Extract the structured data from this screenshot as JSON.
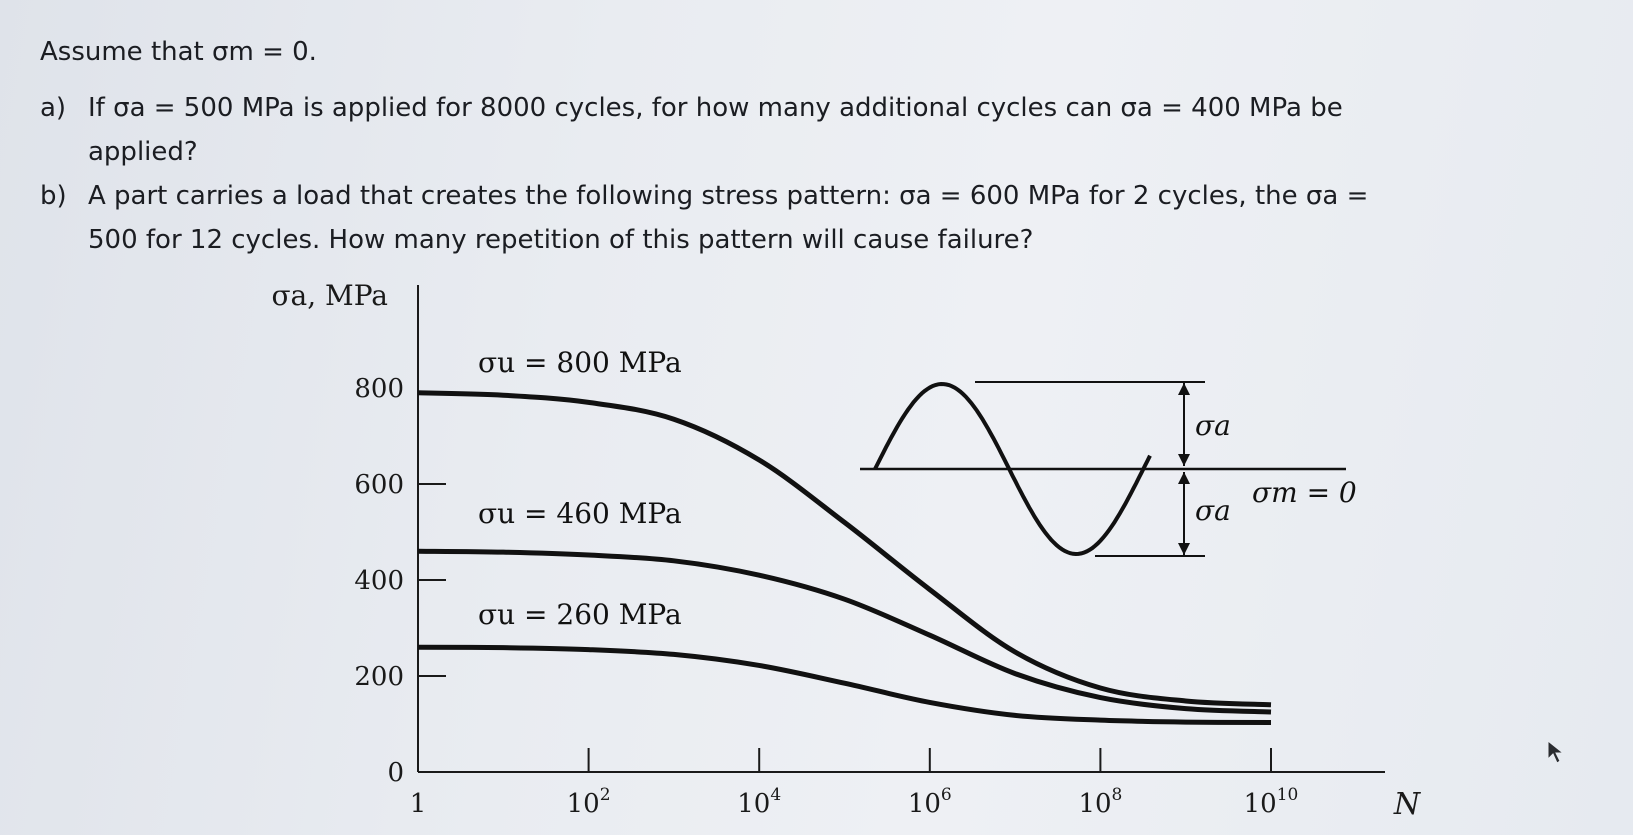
{
  "question": {
    "intro": "Assume that σm = 0.",
    "a_label": "a)",
    "a_line1": "If σa = 500 MPa is applied for 8000 cycles, for how many additional cycles can σa = 400 MPa be",
    "a_line2": "applied?",
    "b_label": "b)",
    "b_line1": "A part carries a load that creates the following stress pattern: σa = 600 MPa for 2 cycles, the σa =",
    "b_line2": "500 for 12 cycles. How many repetition of this pattern will cause failure?"
  },
  "chart_data": {
    "type": "line",
    "title": "",
    "ylabel": "σa, MPa",
    "xlabel": "N",
    "x_scale": "log",
    "ylim": [
      0,
      900
    ],
    "y_ticks": [
      0,
      200,
      400,
      600,
      800
    ],
    "y_tick_labels": [
      "0",
      "200",
      "400",
      "600",
      "800"
    ],
    "x_ticks": [
      1,
      100,
      10000,
      1000000,
      100000000,
      10000000000
    ],
    "x_tick_labels": [
      "1",
      "10^2",
      "10^4",
      "10^6",
      "10^8",
      "10^10"
    ],
    "series": [
      {
        "name": "σu = 800 MPa",
        "x": [
          1,
          10,
          100,
          1000,
          10000,
          100000,
          1000000,
          10000000,
          100000000,
          1000000000,
          10000000000
        ],
        "y": [
          790,
          785,
          770,
          735,
          650,
          520,
          380,
          250,
          175,
          148,
          140
        ]
      },
      {
        "name": "σu = 460 MPa",
        "x": [
          1,
          10,
          100,
          1000,
          10000,
          100000,
          1000000,
          10000000,
          100000000,
          1000000000,
          10000000000
        ],
        "y": [
          460,
          458,
          452,
          440,
          410,
          360,
          285,
          205,
          155,
          132,
          125
        ]
      },
      {
        "name": "σu = 260 MPa",
        "x": [
          1,
          10,
          100,
          1000,
          10000,
          100000,
          1000000,
          10000000,
          100000000,
          1000000000,
          10000000000
        ],
        "y": [
          260,
          259,
          255,
          245,
          222,
          185,
          145,
          118,
          108,
          104,
          103
        ]
      }
    ],
    "inset": {
      "amplitude_label": "σa",
      "mean_label": "σm = 0"
    }
  }
}
